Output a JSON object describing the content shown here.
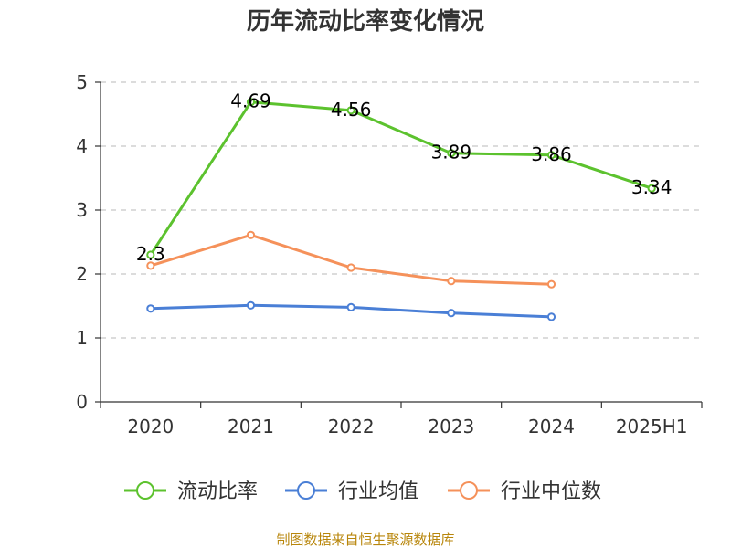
{
  "chart_data": {
    "type": "line",
    "title": "历年流动比率变化情况",
    "categories": [
      "2020",
      "2021",
      "2022",
      "2023",
      "2024",
      "2025H1"
    ],
    "ylim": [
      0,
      5
    ],
    "yticks": [
      0,
      1,
      2,
      3,
      4,
      5
    ],
    "grid": true,
    "legend_position": "bottom",
    "series": [
      {
        "name": "流动比率",
        "color": "#5cc22e",
        "values": [
          2.3,
          4.69,
          4.56,
          3.89,
          3.86,
          3.34
        ],
        "labels": [
          "2.3",
          "4.69",
          "4.56",
          "3.89",
          "3.86",
          "3.34"
        ]
      },
      {
        "name": "行业均值",
        "color": "#4a7fd6",
        "values": [
          1.46,
          1.51,
          1.48,
          1.39,
          1.33,
          null
        ]
      },
      {
        "name": "行业中位数",
        "color": "#f5915a",
        "values": [
          2.13,
          2.61,
          2.1,
          1.89,
          1.84,
          null
        ]
      }
    ],
    "source": "制图数据来自恒生聚源数据库"
  }
}
